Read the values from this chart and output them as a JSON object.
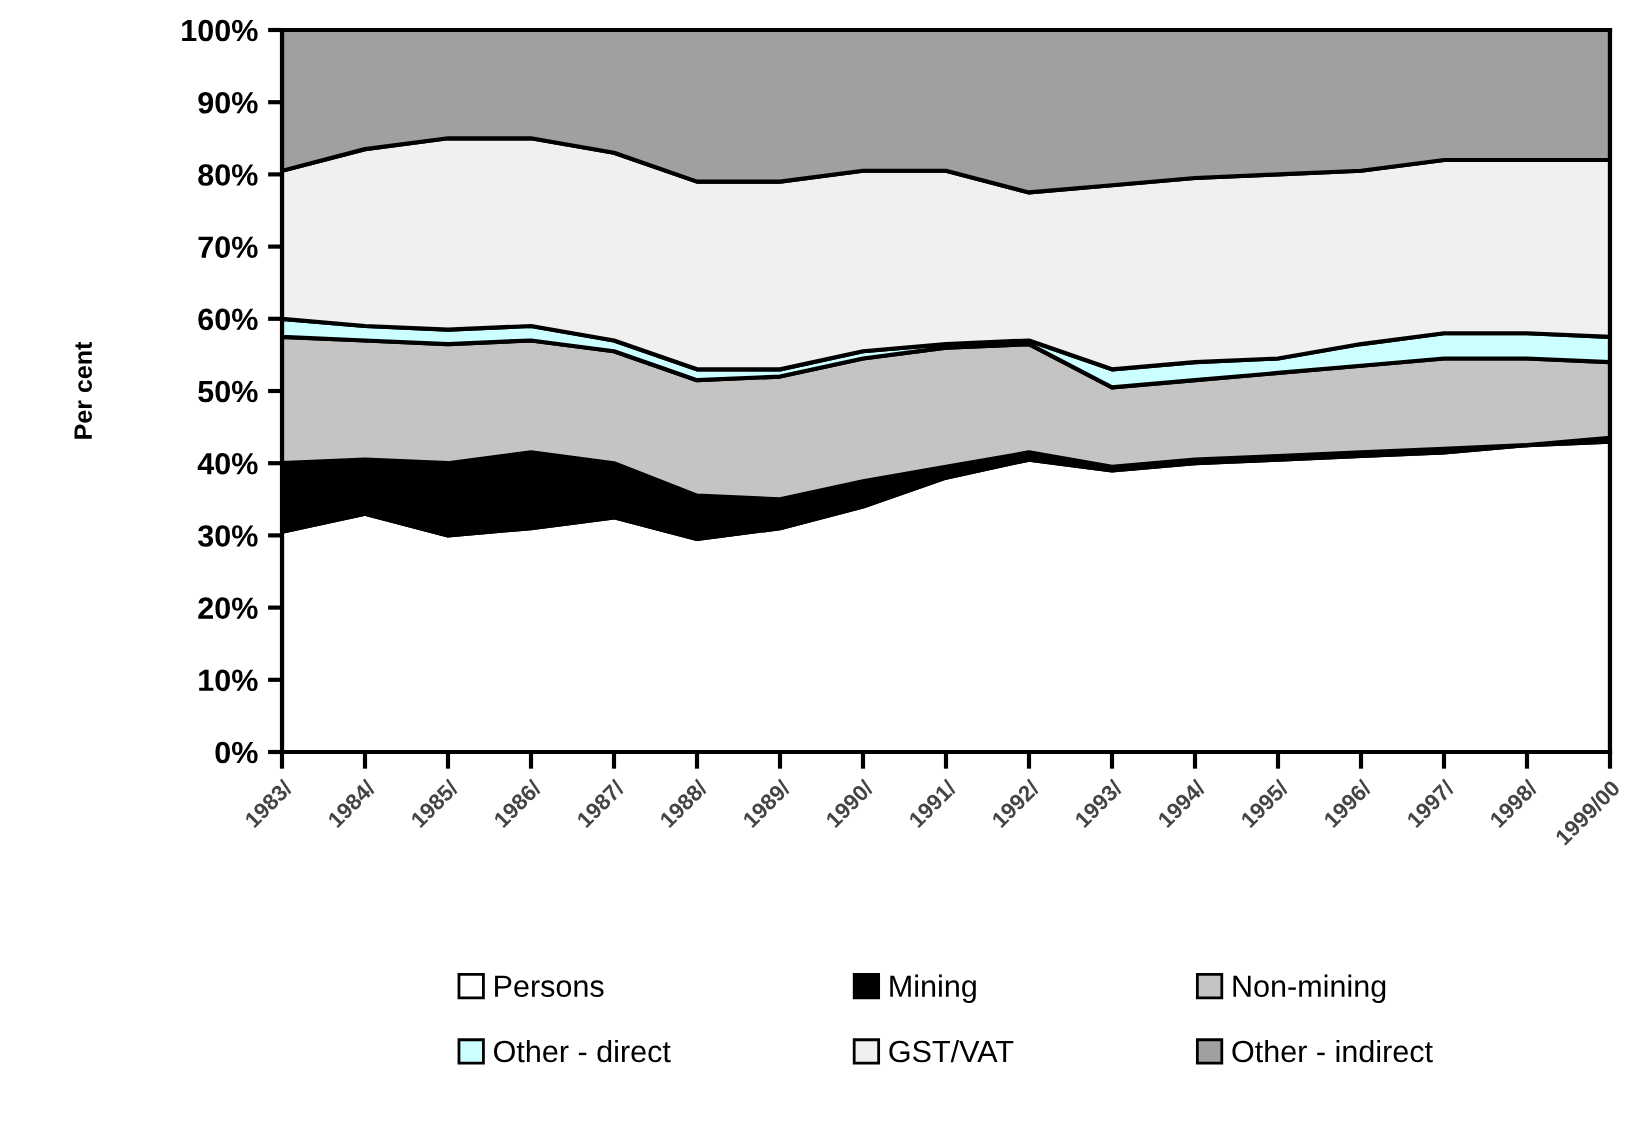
{
  "chart_data": {
    "type": "area",
    "stacked": true,
    "ylabel": "Per cent",
    "categories": [
      "1983/",
      "1984/",
      "1985/",
      "1986/",
      "1987/",
      "1988/",
      "1989/",
      "1990/",
      "1991/",
      "1992/",
      "1993/",
      "1994/",
      "1995/",
      "1996/",
      "1997/",
      "1998/",
      "1999/00"
    ],
    "series": [
      {
        "name": "Persons",
        "color": "#ffffff",
        "values": [
          30.5,
          33,
          30,
          31,
          32.5,
          29.5,
          31,
          34,
          38,
          40.5,
          39,
          40,
          40.5,
          41,
          41.5,
          42.5,
          43
        ]
      },
      {
        "name": "Mining",
        "color": "#000000",
        "values": [
          9.5,
          7.5,
          10,
          10.5,
          7.5,
          6,
          4,
          3.5,
          1.5,
          1,
          0.5,
          0.5,
          0.5,
          0.5,
          0.5,
          0,
          0.5
        ]
      },
      {
        "name": "Non-mining",
        "color": "#c4c4c4",
        "values": [
          17.5,
          16.5,
          16.5,
          15.5,
          15.5,
          16,
          17,
          17,
          16.5,
          15,
          11,
          11,
          11.5,
          12,
          12.5,
          12,
          10.5
        ]
      },
      {
        "name": "Other - direct",
        "color": "#ccffff",
        "values": [
          2.5,
          2,
          2,
          2,
          1.5,
          1.5,
          1,
          1,
          0.5,
          0.5,
          2.5,
          2.5,
          2,
          3,
          3.5,
          3.5,
          3.5
        ]
      },
      {
        "name": "GST/VAT",
        "color": "#f0f0f0",
        "values": [
          20.5,
          24.5,
          26.5,
          26,
          26,
          26,
          26,
          25,
          24,
          20.5,
          25.5,
          25.5,
          25.5,
          24,
          24,
          24,
          24.5
        ]
      },
      {
        "name": "Other - indirect",
        "color": "#a0a0a0",
        "values": [
          19.5,
          16.5,
          15,
          15,
          17,
          21,
          21,
          19.5,
          19.5,
          22.5,
          21.5,
          20.5,
          20,
          19.5,
          18,
          18,
          18
        ]
      }
    ],
    "ylim": [
      0,
      100
    ],
    "yticks": [
      {
        "value": 0,
        "label": "0%"
      },
      {
        "value": 10,
        "label": "10%"
      },
      {
        "value": 20,
        "label": "20%"
      },
      {
        "value": 30,
        "label": "30%"
      },
      {
        "value": 40,
        "label": "40%"
      },
      {
        "value": 50,
        "label": "50%"
      },
      {
        "value": 60,
        "label": "60%"
      },
      {
        "value": 70,
        "label": "70%"
      },
      {
        "value": 80,
        "label": "80%"
      },
      {
        "value": 90,
        "label": "90%"
      },
      {
        "value": 100,
        "label": "100%"
      }
    ],
    "grid": false,
    "legend": "bottom"
  }
}
